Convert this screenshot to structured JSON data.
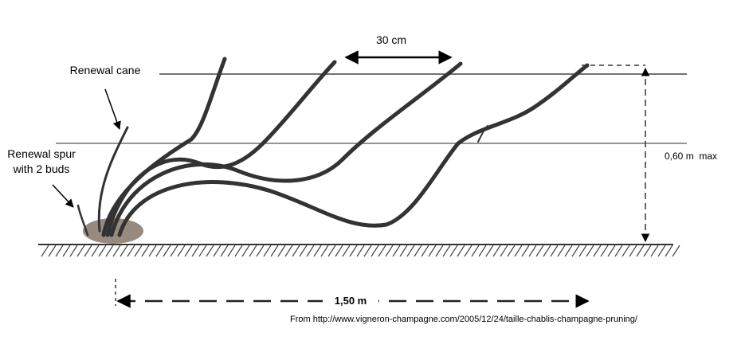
{
  "labels": {
    "renewal_cane": "Renewal cane",
    "renewal_spur": [
      "Renewal spur",
      "with 2 buds"
    ],
    "spacing": "30 cm",
    "height": "0,60 m  max",
    "length": "1,50 m"
  },
  "source": "From http://www.vigneron-champagne.com/2005/12/24/taille-chablis-champagne-pruning/"
}
